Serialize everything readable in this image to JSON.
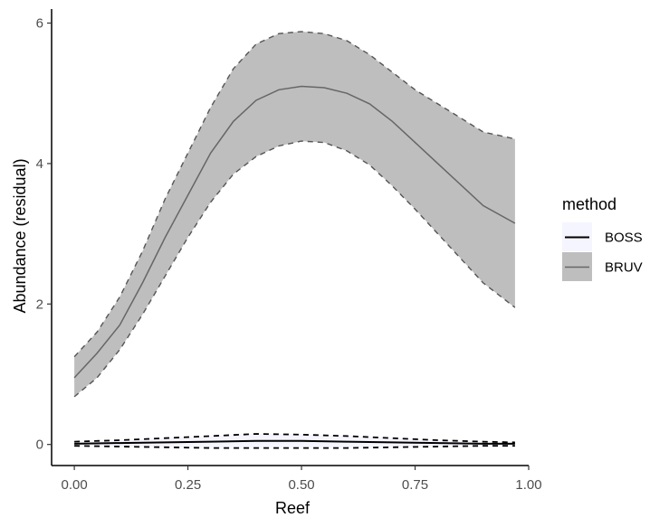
{
  "chart_data": {
    "type": "line",
    "title": "",
    "xlabel": "Reef",
    "ylabel": "Abundance (residual)",
    "xlim": [
      -0.05,
      1.0
    ],
    "ylim": [
      -0.3,
      6.2
    ],
    "x_ticks": [
      0,
      0.25,
      0.5,
      0.75,
      1
    ],
    "x_tick_labels": [
      "0.00",
      "0.25",
      "0.50",
      "0.75",
      "1.00"
    ],
    "y_ticks": [
      0,
      2,
      4,
      6
    ],
    "y_tick_labels": [
      "0",
      "2",
      "4",
      "6"
    ],
    "grid": false,
    "legend": {
      "title": "method",
      "position": "right",
      "entries": [
        "BOSS",
        "BRUV"
      ]
    },
    "series": [
      {
        "name": "BOSS",
        "line_color": "#000000",
        "band_color": "#f5f5ff",
        "x": [
          0,
          0.1,
          0.2,
          0.3,
          0.4,
          0.5,
          0.6,
          0.7,
          0.8,
          0.9,
          0.97
        ],
        "y": [
          0.01,
          0.02,
          0.03,
          0.04,
          0.05,
          0.05,
          0.04,
          0.03,
          0.02,
          0.01,
          0.01
        ],
        "lower": [
          -0.02,
          -0.03,
          -0.04,
          -0.05,
          -0.05,
          -0.05,
          -0.05,
          -0.04,
          -0.03,
          -0.02,
          -0.02
        ],
        "upper": [
          0.04,
          0.06,
          0.09,
          0.12,
          0.15,
          0.14,
          0.12,
          0.09,
          0.06,
          0.04,
          0.03
        ]
      },
      {
        "name": "BRUV",
        "line_color": "#666666",
        "band_color": "#bebebe",
        "x": [
          0,
          0.05,
          0.1,
          0.15,
          0.2,
          0.25,
          0.3,
          0.35,
          0.4,
          0.45,
          0.5,
          0.55,
          0.6,
          0.65,
          0.7,
          0.75,
          0.8,
          0.85,
          0.9,
          0.97
        ],
        "y": [
          0.95,
          1.3,
          1.7,
          2.3,
          2.95,
          3.55,
          4.15,
          4.6,
          4.9,
          5.05,
          5.1,
          5.08,
          5.0,
          4.85,
          4.6,
          4.3,
          4.0,
          3.7,
          3.4,
          3.15
        ],
        "lower": [
          0.68,
          0.95,
          1.35,
          1.85,
          2.4,
          2.95,
          3.45,
          3.85,
          4.1,
          4.25,
          4.32,
          4.3,
          4.18,
          3.98,
          3.68,
          3.35,
          3.0,
          2.65,
          2.3,
          1.95
        ],
        "upper": [
          1.25,
          1.6,
          2.1,
          2.75,
          3.5,
          4.15,
          4.8,
          5.35,
          5.7,
          5.85,
          5.88,
          5.85,
          5.75,
          5.55,
          5.3,
          5.05,
          4.85,
          4.65,
          4.45,
          4.35
        ]
      }
    ]
  }
}
